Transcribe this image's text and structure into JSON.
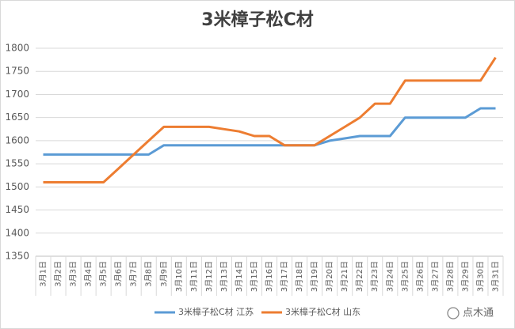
{
  "chart_data": {
    "type": "line",
    "title": "3米樟子松C材",
    "categories": [
      "3月1日",
      "3月2日",
      "3月3日",
      "3月4日",
      "3月5日",
      "3月6日",
      "3月7日",
      "3月8日",
      "3月9日",
      "3月10日",
      "3月11日",
      "3月12日",
      "3月13日",
      "3月14日",
      "3月15日",
      "3月16日",
      "3月17日",
      "3月18日",
      "3月19日",
      "3月20日",
      "3月21日",
      "3月22日",
      "3月23日",
      "3月24日",
      "3月25日",
      "3月26日",
      "3月27日",
      "3月28日",
      "3月29日",
      "3月30日",
      "3月31日"
    ],
    "series": [
      {
        "name": "3米樟子松C材 江苏",
        "color": "#5b9bd5",
        "values": [
          1570,
          1570,
          1570,
          1570,
          1570,
          1570,
          1570,
          1570,
          1590,
          1590,
          1590,
          1590,
          1590,
          1590,
          1590,
          1590,
          1590,
          1590,
          1590,
          1600,
          1605,
          1610,
          1610,
          1610,
          1650,
          1650,
          1650,
          1650,
          1650,
          1670,
          1670
        ]
      },
      {
        "name": "3米樟子松C材 山东",
        "color": "#ed7d31",
        "values": [
          1510,
          1510,
          1510,
          1510,
          1510,
          1540,
          1570,
          1600,
          1630,
          1630,
          1630,
          1630,
          1625,
          1620,
          1610,
          1610,
          1590,
          1590,
          1590,
          1610,
          1630,
          1650,
          1680,
          1680,
          1730,
          1730,
          1730,
          1730,
          1730,
          1730,
          1780
        ]
      }
    ],
    "ylim": [
      1350,
      1800
    ],
    "yticks": [
      1350,
      1400,
      1450,
      1500,
      1550,
      1600,
      1650,
      1700,
      1750,
      1800
    ],
    "grid": true,
    "legend": "bottom",
    "watermark": "点木通"
  }
}
